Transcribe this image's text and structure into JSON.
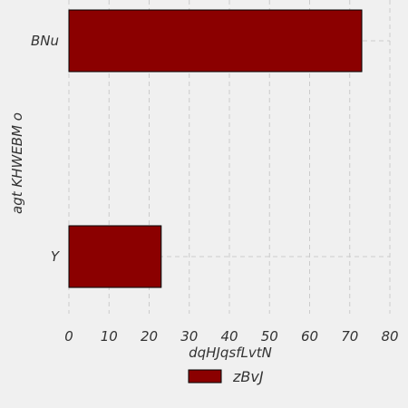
{
  "chart_data": {
    "type": "bar",
    "orientation": "horizontal",
    "categories": [
      "Y",
      "BNu"
    ],
    "series": [
      {
        "name": "zBvJ",
        "values": [
          23,
          73
        ]
      }
    ],
    "xlabel": "dqHJqsfLvtN",
    "ylabel": "agt KHWEBM o",
    "xlim": [
      0,
      80
    ],
    "xticks": [
      0,
      10,
      20,
      30,
      40,
      50,
      60,
      70,
      80
    ],
    "grid": true,
    "legend": "bottom-center",
    "colors": {
      "bar_fill": "#8b0000",
      "bar_edge": "#000000",
      "grid": "#cbcbcb",
      "background": "#f0f0f0"
    }
  }
}
